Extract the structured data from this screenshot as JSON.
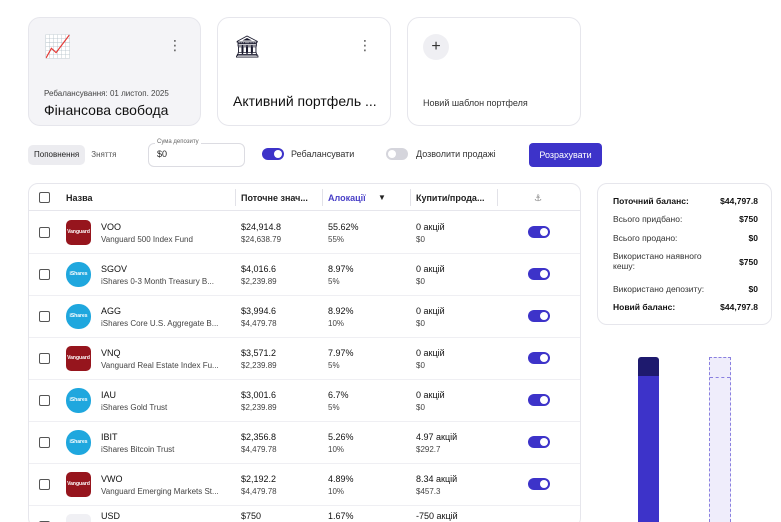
{
  "colors": {
    "accent": "#3d33c9",
    "vanguard": "#96151d",
    "ishares": "#1fa7de"
  },
  "cards": [
    {
      "icon": "chart-up-icon",
      "subtitle": "Ребалансування: 01 листоп. 2025",
      "title": "Фінансова свобода"
    },
    {
      "icon": "bank-icon",
      "title": "Активний портфель ..."
    },
    {
      "newlabel": "Новий шаблон портфеля"
    }
  ],
  "controls": {
    "segments": [
      "Поповнення",
      "Зняття"
    ],
    "deposit_label": "Сума депозиту",
    "deposit_value": "$0",
    "rebalance_label": "Ребалансувати",
    "allow_sell_label": "Дозволити продажі",
    "calc_label": "Розрахувати"
  },
  "table": {
    "headers": {
      "name": "Назва",
      "current": "Поточне знач...",
      "alloc": "Алокації",
      "buy": "Купити/прода..."
    },
    "rows": [
      {
        "logo": "Vanguard",
        "ticker": "VOO",
        "name": "Vanguard 500 Index Fund",
        "cur": "$24,914.8",
        "target_val": "$24,638.79",
        "alloc": "55.62%",
        "target_alloc": "55%",
        "buy": "0 акцій",
        "buy_val": "$0"
      },
      {
        "logo": "iShares",
        "ticker": "SGOV",
        "name": "iShares 0-3 Month Treasury B...",
        "cur": "$4,016.6",
        "target_val": "$2,239.89",
        "alloc": "8.97%",
        "target_alloc": "5%",
        "buy": "0 акцій",
        "buy_val": "$0"
      },
      {
        "logo": "iShares",
        "ticker": "AGG",
        "name": "iShares Core U.S. Aggregate B...",
        "cur": "$3,994.6",
        "target_val": "$4,479.78",
        "alloc": "8.92%",
        "target_alloc": "10%",
        "buy": "0 акцій",
        "buy_val": "$0"
      },
      {
        "logo": "Vanguard",
        "ticker": "VNQ",
        "name": "Vanguard Real Estate Index Fu...",
        "cur": "$3,571.2",
        "target_val": "$2,239.89",
        "alloc": "7.97%",
        "target_alloc": "5%",
        "buy": "0 акцій",
        "buy_val": "$0"
      },
      {
        "logo": "iShares",
        "ticker": "IAU",
        "name": "iShares Gold Trust",
        "cur": "$3,001.6",
        "target_val": "$2,239.89",
        "alloc": "6.7%",
        "target_alloc": "5%",
        "buy": "0 акцій",
        "buy_val": "$0"
      },
      {
        "logo": "iShares",
        "ticker": "IBIT",
        "name": "iShares Bitcoin Trust",
        "cur": "$2,356.8",
        "target_val": "$4,479.78",
        "alloc": "5.26%",
        "target_alloc": "10%",
        "buy": "4.97 акцій",
        "buy_val": "$292.7"
      },
      {
        "logo": "Vanguard",
        "ticker": "VWO",
        "name": "Vanguard Emerging Markets St...",
        "cur": "$2,192.2",
        "target_val": "$4,479.78",
        "alloc": "4.89%",
        "target_alloc": "10%",
        "buy": "8.34 акцій",
        "buy_val": "$457.3"
      },
      {
        "logo": "",
        "ticker": "USD",
        "name": "",
        "cur": "$750",
        "target_val": "",
        "alloc": "1.67%",
        "target_alloc": "",
        "buy": "-750 акцій",
        "buy_val": ""
      }
    ]
  },
  "summary": [
    {
      "label": "Поточний баланс:",
      "value": "$44,797.8"
    },
    {
      "label": "Всього придбано:",
      "value": "$750"
    },
    {
      "label": "Всього продано:",
      "value": "$0"
    },
    {
      "label": "Використано наявного кешу:",
      "value": "$750"
    },
    {
      "label": "Використано депозиту:",
      "value": "$0"
    },
    {
      "label": "Новий баланс:",
      "value": "$44,797.8"
    }
  ]
}
